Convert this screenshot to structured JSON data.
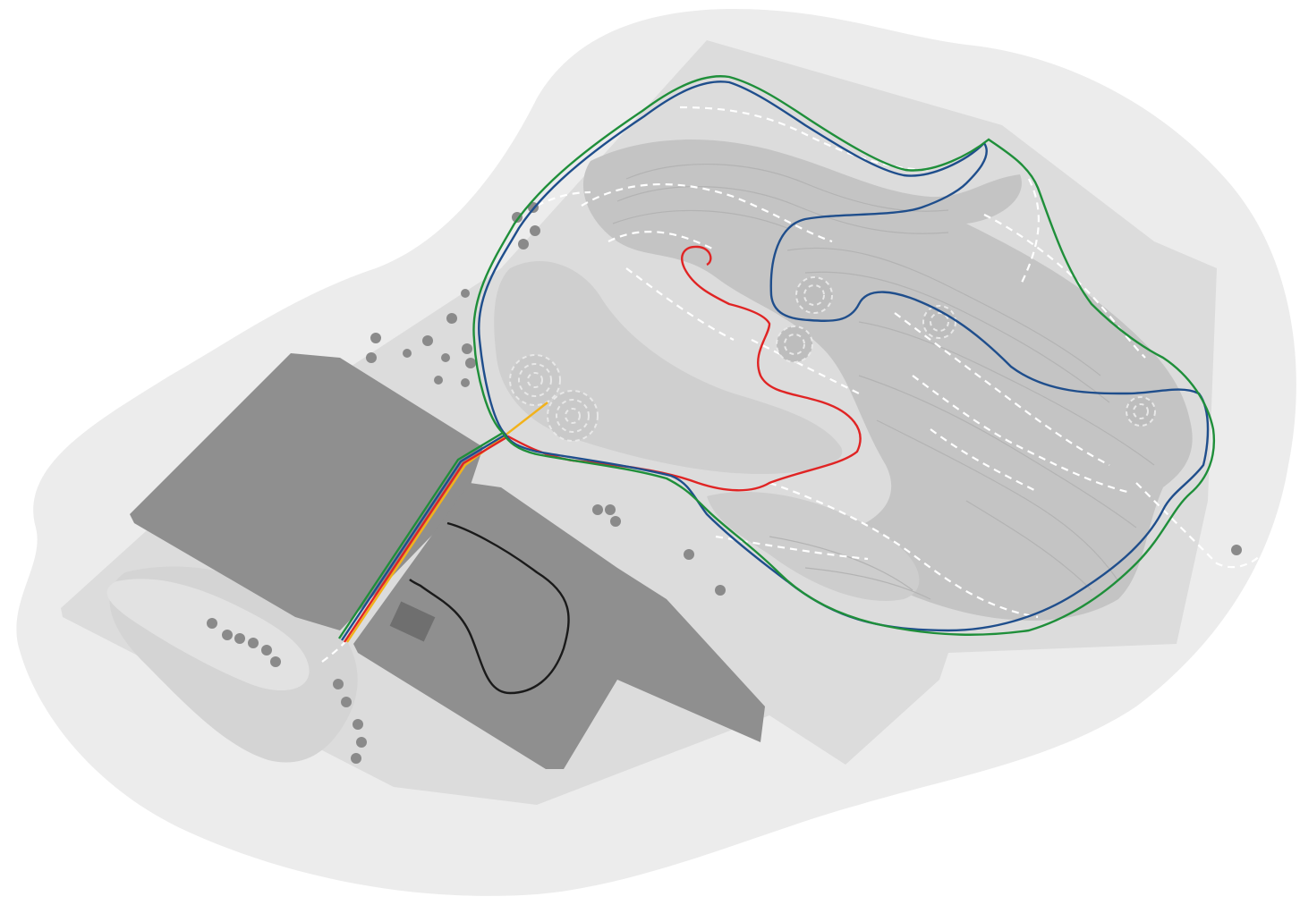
{
  "map": {
    "colors": {
      "page_background": "#ffffff",
      "outer_land": "#ececec",
      "site_ground": "#dcdcdc",
      "meadow": "#d2d2d2",
      "landform": "#c4c4c4",
      "landform_light": "#cfcfcf",
      "contour": "#b3b3b3",
      "woodland": "#8f8f8f",
      "tree": "#8a8a8a",
      "footpath": "#ffffff",
      "trail_green": "#1f8f3a",
      "trail_blue": "#1f4e8c",
      "trail_red": "#e02424",
      "trail_yellow": "#f2b21b",
      "trail_black": "#1a1a1a"
    },
    "trails": [
      {
        "id": "green",
        "color": "#1f8f3a"
      },
      {
        "id": "blue",
        "color": "#1f4e8c"
      },
      {
        "id": "red",
        "color": "#e02424"
      },
      {
        "id": "yellow",
        "color": "#f2b21b"
      },
      {
        "id": "black",
        "color": "#1a1a1a"
      }
    ],
    "features": {
      "woodland_blocks": 2,
      "car_park": 1,
      "building": 1,
      "spiral_mounds": 6
    }
  }
}
